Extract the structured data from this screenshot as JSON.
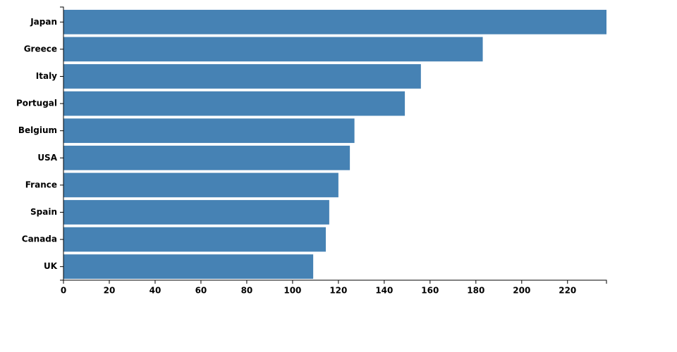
{
  "chart_data": {
    "type": "bar",
    "orientation": "horizontal",
    "categories": [
      "Japan",
      "Greece",
      "Italy",
      "Portugal",
      "Belgium",
      "USA",
      "France",
      "Spain",
      "Canada",
      "UK"
    ],
    "values": [
      237,
      183,
      156,
      149,
      127,
      125,
      120,
      116,
      114.5,
      109
    ],
    "color": "#4682b4",
    "xlim": [
      0,
      237
    ],
    "xticks": [
      0,
      20,
      40,
      60,
      80,
      100,
      120,
      140,
      160,
      180,
      200,
      220
    ],
    "grid": false
  }
}
